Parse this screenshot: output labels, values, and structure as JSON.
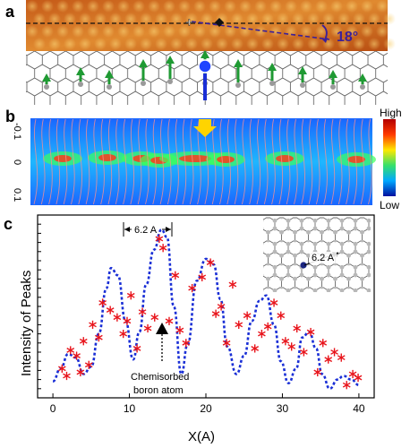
{
  "panels": {
    "a": {
      "label": "a",
      "angle_text": "18°",
      "colors": {
        "stm_dark": "#a8420e",
        "stm_light": "#f6c15e",
        "arrow_green": "#1f9a33"
      }
    },
    "b": {
      "label": "b",
      "colorbar": {
        "high": "High",
        "low": "Low"
      },
      "y_ticks": [
        "-0.1",
        "0",
        "0.1"
      ]
    },
    "c": {
      "label": "c",
      "spacing_label": "6.2 A",
      "inset_label": "6.2 A",
      "annotation_line1": "Chemisorbed",
      "annotation_line2": "boron atom"
    }
  },
  "chart_data": {
    "type": "scatter",
    "xlabel": "X(A)",
    "ylabel": "Intensity of Peaks",
    "xlim": [
      -2,
      42
    ],
    "ylim": [
      0,
      1
    ],
    "x_ticks": [
      0,
      10,
      20,
      30,
      40
    ],
    "series": [
      {
        "style": "red-asterisk",
        "color": "#e8141b",
        "x": [
          1.2,
          1.8,
          2.3,
          3.1,
          3.6,
          4.0,
          4.7,
          5.2,
          6.0,
          6.5,
          7.5,
          8.4,
          9.2,
          9.7,
          10.2,
          11.0,
          11.7,
          12.4,
          13.3,
          13.9,
          14.4,
          15.2,
          16.0,
          16.6,
          17.4,
          18.2,
          19.5,
          20.6,
          21.3,
          22.0,
          22.7,
          23.5,
          24.3,
          25.4,
          26.4,
          27.3,
          28.1,
          28.9,
          29.8,
          30.4,
          31.2,
          31.9,
          32.8,
          33.7,
          34.6,
          35.3,
          36.0,
          36.8,
          37.7,
          38.4,
          39.2,
          39.9
        ],
        "y": [
          0.16,
          0.12,
          0.26,
          0.23,
          0.14,
          0.31,
          0.18,
          0.4,
          0.33,
          0.52,
          0.48,
          0.44,
          0.35,
          0.42,
          0.56,
          0.27,
          0.47,
          0.38,
          0.44,
          0.87,
          0.82,
          0.42,
          0.67,
          0.37,
          0.3,
          0.6,
          0.66,
          0.74,
          0.46,
          0.5,
          0.3,
          0.62,
          0.4,
          0.45,
          0.27,
          0.35,
          0.39,
          0.52,
          0.45,
          0.31,
          0.28,
          0.38,
          0.25,
          0.36,
          0.14,
          0.3,
          0.21,
          0.25,
          0.22,
          0.07,
          0.13,
          0.11
        ]
      },
      {
        "style": "blue-dotted-fit",
        "color": "#1a2fd6",
        "x": [
          0.0,
          1.0,
          2.0,
          3.0,
          4.0,
          5.0,
          6.0,
          7.0,
          7.6,
          8.5,
          9.5,
          10.5,
          11.3,
          12.2,
          13.2,
          14.2,
          14.9,
          15.8,
          16.8,
          17.6,
          18.8,
          20.0,
          21.0,
          21.9,
          22.8,
          24.0,
          25.0,
          26.0,
          27.0,
          27.9,
          28.9,
          29.8,
          30.8,
          31.8,
          32.6,
          33.5,
          34.4,
          35.2,
          36.2,
          37.2,
          38.0,
          39.0,
          40.0
        ],
        "y": [
          0.09,
          0.16,
          0.24,
          0.22,
          0.13,
          0.17,
          0.35,
          0.6,
          0.71,
          0.67,
          0.42,
          0.21,
          0.36,
          0.62,
          0.81,
          0.92,
          0.88,
          0.5,
          0.13,
          0.29,
          0.64,
          0.76,
          0.73,
          0.54,
          0.28,
          0.13,
          0.23,
          0.42,
          0.53,
          0.56,
          0.4,
          0.2,
          0.08,
          0.16,
          0.33,
          0.36,
          0.27,
          0.13,
          0.05,
          0.1,
          0.12,
          0.1,
          0.07
        ]
      }
    ]
  }
}
